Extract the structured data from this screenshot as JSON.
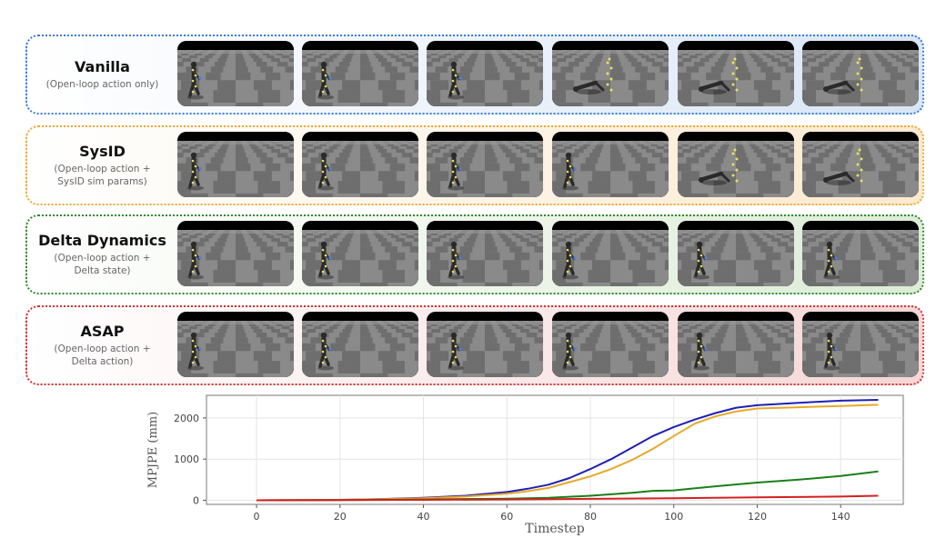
{
  "rows": [
    {
      "title": "Vanilla",
      "subtitle": "(Open-loop action only)",
      "border": "#3b7dd8",
      "tint": "#d9e6f6",
      "fallen": [
        false,
        false,
        false,
        true,
        true,
        true
      ]
    },
    {
      "title": "SysID",
      "subtitle": "(Open-loop action +\nSysID sim params)",
      "border": "#f0a830",
      "tint": "#fbe9cf",
      "fallen": [
        false,
        false,
        false,
        false,
        true,
        true
      ]
    },
    {
      "title": "Delta Dynamics",
      "subtitle": "(Open-loop action +\nDelta state)",
      "border": "#2e8b2e",
      "tint": "#ddecd6",
      "fallen": [
        false,
        false,
        false,
        false,
        false,
        false
      ]
    },
    {
      "title": "ASAP",
      "subtitle": "(Open-loop action +\nDelta action)",
      "border": "#d33030",
      "tint": "#f6d6d6",
      "fallen": [
        false,
        false,
        false,
        false,
        false,
        false
      ]
    }
  ],
  "chart_data": {
    "type": "line",
    "xlabel": "Timestep",
    "ylabel": "MPJPE (mm)",
    "xlim": [
      -12,
      155
    ],
    "ylim": [
      -100,
      2550
    ],
    "xticks": [
      0,
      20,
      40,
      60,
      80,
      100,
      120,
      140
    ],
    "yticks": [
      0,
      1000,
      2000
    ],
    "grid": true,
    "series": [
      {
        "color": "#1f1fb4",
        "x": [
          0,
          20,
          30,
          40,
          50,
          60,
          65,
          70,
          75,
          80,
          85,
          90,
          95,
          100,
          105,
          110,
          115,
          120,
          130,
          140,
          149
        ],
        "y": [
          0,
          10,
          30,
          60,
          110,
          200,
          280,
          380,
          540,
          760,
          1000,
          1280,
          1560,
          1780,
          1960,
          2120,
          2250,
          2310,
          2370,
          2420,
          2440
        ]
      },
      {
        "color": "#e6a92a",
        "x": [
          0,
          20,
          30,
          40,
          50,
          60,
          65,
          70,
          75,
          80,
          85,
          90,
          95,
          100,
          105,
          110,
          115,
          120,
          130,
          140,
          149
        ],
        "y": [
          0,
          10,
          25,
          50,
          90,
          160,
          220,
          300,
          440,
          580,
          760,
          980,
          1250,
          1560,
          1860,
          2040,
          2160,
          2230,
          2260,
          2290,
          2320
        ]
      },
      {
        "color": "#1a7f1a",
        "x": [
          0,
          20,
          40,
          60,
          70,
          80,
          90,
          95,
          100,
          110,
          120,
          130,
          140,
          149
        ],
        "y": [
          0,
          5,
          20,
          40,
          60,
          110,
          180,
          230,
          240,
          340,
          430,
          500,
          590,
          700
        ]
      },
      {
        "color": "#d42020",
        "x": [
          0,
          20,
          40,
          60,
          80,
          100,
          120,
          140,
          149
        ],
        "y": [
          0,
          3,
          10,
          20,
          35,
          50,
          70,
          90,
          110
        ]
      }
    ]
  }
}
